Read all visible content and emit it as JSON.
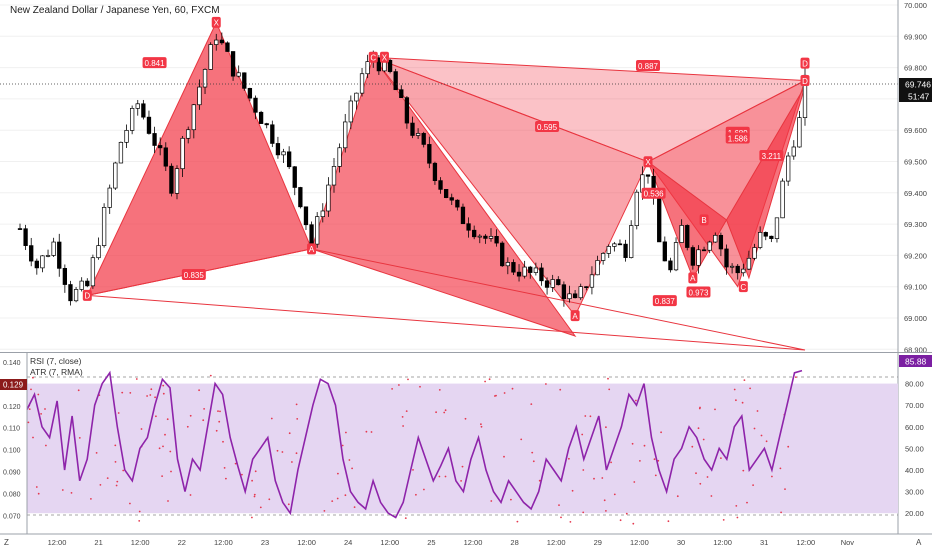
{
  "header": {
    "title": "New Zealand Dollar / Japanese Yen, 60, FXCM"
  },
  "price_axis": {
    "ticks": [
      "70.000",
      "69.900",
      "69.800",
      "69.700",
      "69.600",
      "69.500",
      "69.400",
      "69.300",
      "69.200",
      "69.100",
      "69.000",
      "68.900"
    ],
    "last_price": "69.746",
    "countdown": "51:47"
  },
  "indicator": {
    "rsi_label": "RSI (7, close)",
    "atr_label": "ATR (7, RMA)",
    "atr_value": "0.129",
    "rsi_value": "85.88",
    "left_ticks": [
      "0.140",
      "0.130",
      "0.120",
      "0.110",
      "0.100",
      "0.090",
      "0.080",
      "0.070"
    ],
    "right_ticks": [
      "80.00",
      "70.00",
      "60.00",
      "50.00",
      "40.00",
      "30.00",
      "20.00"
    ]
  },
  "time_axis": {
    "labels": [
      "12:00",
      "21",
      "12:00",
      "22",
      "12:00",
      "23",
      "12:00",
      "24",
      "12:00",
      "25",
      "12:00",
      "28",
      "12:00",
      "29",
      "12:00",
      "30",
      "12:00",
      "31",
      "12:00",
      "Nov"
    ],
    "z_label": "Z",
    "a_label": "A"
  },
  "colors": {
    "up": "#ffffff",
    "down": "#000000",
    "pattern_fill": "#f23645",
    "pattern_edge": "#e8353f",
    "rsi_line": "#8e24aa",
    "rsi_band": "#e5d6f2",
    "atr_dots": "#e53950"
  },
  "chart_data": [
    {
      "type": "candlestick",
      "symbol": "NZDJPY",
      "timeframe": "60",
      "ylim": [
        68.88,
        70.02
      ],
      "last_price": 69.746,
      "path_points": [
        [
          0,
          69.25
        ],
        [
          3,
          69.12
        ],
        [
          6,
          69.2
        ],
        [
          9,
          69.02
        ],
        [
          12,
          69.05
        ],
        [
          15,
          69.3
        ],
        [
          18,
          69.55
        ],
        [
          21,
          69.68
        ],
        [
          24,
          69.55
        ],
        [
          27,
          69.4
        ],
        [
          30,
          69.62
        ],
        [
          33,
          69.8
        ],
        [
          35,
          69.92
        ],
        [
          38,
          69.8
        ],
        [
          41,
          69.7
        ],
        [
          44,
          69.6
        ],
        [
          47,
          69.5
        ],
        [
          50,
          69.35
        ],
        [
          52,
          69.2
        ],
        [
          55,
          69.4
        ],
        [
          58,
          69.6
        ],
        [
          61,
          69.78
        ],
        [
          63,
          69.84
        ],
        [
          66,
          69.78
        ],
        [
          69,
          69.62
        ],
        [
          72,
          69.52
        ],
        [
          75,
          69.4
        ],
        [
          78,
          69.3
        ],
        [
          81,
          69.25
        ],
        [
          84,
          69.2
        ],
        [
          87,
          69.12
        ],
        [
          90,
          69.1
        ],
        [
          93,
          69.08
        ],
        [
          96,
          69.05
        ],
        [
          99,
          68.99
        ],
        [
          102,
          69.1
        ],
        [
          105,
          69.2
        ],
        [
          108,
          69.18
        ],
        [
          110,
          69.4
        ],
        [
          112,
          69.45
        ],
        [
          114,
          69.2
        ],
        [
          116,
          69.1
        ],
        [
          118,
          69.25
        ],
        [
          120,
          69.15
        ],
        [
          122,
          69.2
        ],
        [
          124,
          69.25
        ],
        [
          126,
          69.12
        ],
        [
          128,
          69.1
        ],
        [
          130,
          69.15
        ],
        [
          132,
          69.22
        ],
        [
          134,
          69.2
        ],
        [
          135,
          69.3
        ],
        [
          137,
          69.5
        ],
        [
          139,
          69.62
        ],
        [
          140,
          69.75
        ]
      ],
      "pattern_labels": [
        "X",
        "A",
        "B",
        "C",
        "D"
      ],
      "ratio_labels": [
        "0.841",
        "0.835",
        "0.887",
        "0.595",
        "0.536",
        "0.837",
        "0.973",
        "1.689",
        "1.586",
        "3.211"
      ]
    },
    {
      "type": "line",
      "series": [
        {
          "name": "RSI (7, close)",
          "values": [
            68,
            75,
            60,
            55,
            72,
            40,
            65,
            35,
            45,
            70,
            80,
            85,
            60,
            40,
            35,
            50,
            55,
            70,
            82,
            78,
            45,
            30,
            45,
            40,
            60,
            80,
            75,
            55,
            42,
            30,
            45,
            50,
            55,
            35,
            25,
            20,
            40,
            55,
            70,
            82,
            80,
            70,
            45,
            30,
            25,
            22,
            35,
            25,
            20,
            18,
            25,
            40,
            55,
            45,
            35,
            42,
            50,
            35,
            30,
            45,
            55,
            40,
            30,
            25,
            35,
            30,
            25,
            22,
            30,
            45,
            40,
            35,
            50,
            60,
            45,
            55,
            65,
            40,
            50,
            60,
            75,
            70,
            80,
            55,
            40,
            30,
            45,
            50,
            60,
            55,
            45,
            40,
            50,
            45,
            60,
            65,
            40,
            45,
            50,
            40,
            55,
            70,
            85,
            86
          ]
        }
      ],
      "ylim_right": [
        15,
        90
      ],
      "band": [
        20,
        80
      ]
    }
  ]
}
